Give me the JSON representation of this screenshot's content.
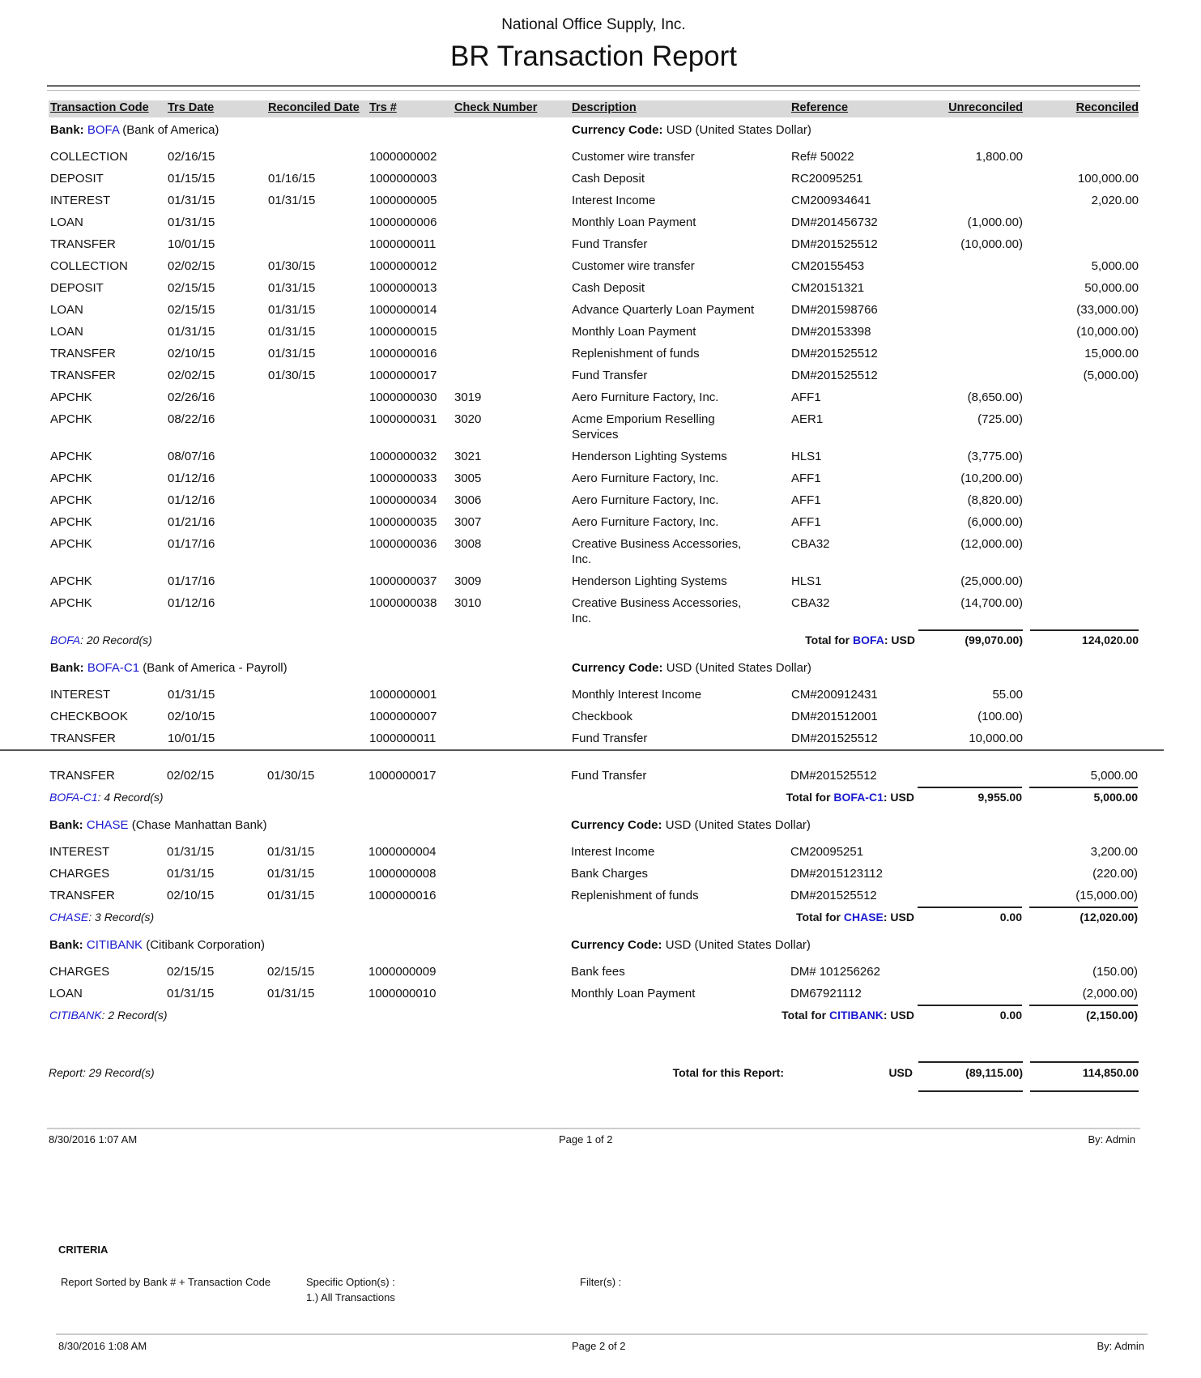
{
  "report": {
    "company": "National Office Supply, Inc.",
    "title": "BR Transaction Report"
  },
  "columns": {
    "code": "Transaction Code",
    "trs_date": "Trs Date",
    "reconciled_date": "Reconciled Date",
    "trs_no": "Trs #",
    "check_no": "Check Number",
    "description": "Description",
    "reference": "Reference",
    "unreconciled": "Unreconciled",
    "reconciled": "Reconciled"
  },
  "labels": {
    "bank": "Bank:",
    "currency_code": "Currency Code:",
    "total_for": "Total for",
    "total_currency": ": USD"
  },
  "colors": {
    "link": "#1a1ad0",
    "header_band": "#d9d9d9"
  },
  "banks": [
    {
      "code": "BOFA",
      "name": "(Bank of America)",
      "currency": "USD (United States Dollar)",
      "records": ": 20 Record(s)",
      "total_unreconciled": "(99,070.00)",
      "total_reconciled": "124,020.00",
      "rows": [
        {
          "code": "COLLECTION",
          "date": "02/16/15",
          "rdate": "",
          "trs": "1000000002",
          "check": "",
          "desc": "Customer wire transfer",
          "ref": "Ref# 50022",
          "unrec": "1,800.00",
          "rec": ""
        },
        {
          "code": "DEPOSIT",
          "date": "01/15/15",
          "rdate": "01/16/15",
          "trs": "1000000003",
          "check": "",
          "desc": "Cash Deposit",
          "ref": "RC20095251",
          "unrec": "",
          "rec": "100,000.00"
        },
        {
          "code": "INTEREST",
          "date": "01/31/15",
          "rdate": "01/31/15",
          "trs": "1000000005",
          "check": "",
          "desc": "Interest Income",
          "ref": "CM200934641",
          "unrec": "",
          "rec": "2,020.00"
        },
        {
          "code": "LOAN",
          "date": "01/31/15",
          "rdate": "",
          "trs": "1000000006",
          "check": "",
          "desc": "Monthly Loan Payment",
          "ref": "DM#201456732",
          "unrec": "(1,000.00)",
          "rec": ""
        },
        {
          "code": "TRANSFER",
          "date": "10/01/15",
          "rdate": "",
          "trs": "1000000011",
          "check": "",
          "desc": "Fund Transfer",
          "ref": "DM#201525512",
          "unrec": "(10,000.00)",
          "rec": ""
        },
        {
          "code": "COLLECTION",
          "date": "02/02/15",
          "rdate": "01/30/15",
          "trs": "1000000012",
          "check": "",
          "desc": "Customer wire transfer",
          "ref": "CM20155453",
          "unrec": "",
          "rec": "5,000.00"
        },
        {
          "code": "DEPOSIT",
          "date": "02/15/15",
          "rdate": "01/31/15",
          "trs": "1000000013",
          "check": "",
          "desc": "Cash Deposit",
          "ref": "CM20151321",
          "unrec": "",
          "rec": "50,000.00"
        },
        {
          "code": "LOAN",
          "date": "02/15/15",
          "rdate": "01/31/15",
          "trs": "1000000014",
          "check": "",
          "desc": "Advance Quarterly Loan Payment",
          "ref": "DM#201598766",
          "unrec": "",
          "rec": "(33,000.00)"
        },
        {
          "code": "LOAN",
          "date": "01/31/15",
          "rdate": "01/31/15",
          "trs": "1000000015",
          "check": "",
          "desc": "Monthly Loan Payment",
          "ref": "DM#20153398",
          "unrec": "",
          "rec": "(10,000.00)"
        },
        {
          "code": "TRANSFER",
          "date": "02/10/15",
          "rdate": "01/31/15",
          "trs": "1000000016",
          "check": "",
          "desc": "Replenishment of funds",
          "ref": "DM#201525512",
          "unrec": "",
          "rec": "15,000.00"
        },
        {
          "code": "TRANSFER",
          "date": "02/02/15",
          "rdate": "01/30/15",
          "trs": "1000000017",
          "check": "",
          "desc": "Fund Transfer",
          "ref": "DM#201525512",
          "unrec": "",
          "rec": "(5,000.00)"
        },
        {
          "code": "APCHK",
          "date": "02/26/16",
          "rdate": "",
          "trs": "1000000030",
          "check": "3019",
          "desc": "Aero Furniture Factory, Inc.",
          "ref": "AFF1",
          "unrec": "(8,650.00)",
          "rec": ""
        },
        {
          "code": "APCHK",
          "date": "08/22/16",
          "rdate": "",
          "trs": "1000000031",
          "check": "3020",
          "desc": "Acme Emporium Reselling\nServices",
          "ref": "AER1",
          "unrec": "(725.00)",
          "rec": ""
        },
        {
          "code": "APCHK",
          "date": "08/07/16",
          "rdate": "",
          "trs": "1000000032",
          "check": "3021",
          "desc": "Henderson Lighting Systems",
          "ref": "HLS1",
          "unrec": "(3,775.00)",
          "rec": ""
        },
        {
          "code": "APCHK",
          "date": "01/12/16",
          "rdate": "",
          "trs": "1000000033",
          "check": "3005",
          "desc": "Aero Furniture Factory, Inc.",
          "ref": "AFF1",
          "unrec": "(10,200.00)",
          "rec": ""
        },
        {
          "code": "APCHK",
          "date": "01/12/16",
          "rdate": "",
          "trs": "1000000034",
          "check": "3006",
          "desc": "Aero Furniture Factory, Inc.",
          "ref": "AFF1",
          "unrec": "(8,820.00)",
          "rec": ""
        },
        {
          "code": "APCHK",
          "date": "01/21/16",
          "rdate": "",
          "trs": "1000000035",
          "check": "3007",
          "desc": "Aero Furniture Factory, Inc.",
          "ref": "AFF1",
          "unrec": "(6,000.00)",
          "rec": ""
        },
        {
          "code": "APCHK",
          "date": "01/17/16",
          "rdate": "",
          "trs": "1000000036",
          "check": "3008",
          "desc": "Creative Business Accessories,\nInc.",
          "ref": "CBA32",
          "unrec": "(12,000.00)",
          "rec": ""
        },
        {
          "code": "APCHK",
          "date": "01/17/16",
          "rdate": "",
          "trs": "1000000037",
          "check": "3009",
          "desc": "Henderson Lighting Systems",
          "ref": "HLS1",
          "unrec": "(25,000.00)",
          "rec": ""
        },
        {
          "code": "APCHK",
          "date": "01/12/16",
          "rdate": "",
          "trs": "1000000038",
          "check": "3010",
          "desc": "Creative Business Accessories,\nInc.",
          "ref": "CBA32",
          "unrec": "(14,700.00)",
          "rec": ""
        }
      ]
    },
    {
      "code": "BOFA-C1",
      "name": "(Bank of America - Payroll)",
      "currency": "USD (United States Dollar)",
      "records": ": 4 Record(s)",
      "total_unreconciled": "9,955.00",
      "total_reconciled": "5,000.00",
      "rows": [
        {
          "code": "INTEREST",
          "date": "01/31/15",
          "rdate": "",
          "trs": "1000000001",
          "check": "",
          "desc": "Monthly Interest Income",
          "ref": "CM#200912431",
          "unrec": "55.00",
          "rec": ""
        },
        {
          "code": "CHECKBOOK",
          "date": "02/10/15",
          "rdate": "",
          "trs": "1000000007",
          "check": "",
          "desc": "Checkbook",
          "ref": "DM#201512001",
          "unrec": "(100.00)",
          "rec": ""
        },
        {
          "code": "TRANSFER",
          "date": "10/01/15",
          "rdate": "",
          "trs": "1000000011",
          "check": "",
          "desc": "Fund Transfer",
          "ref": "DM#201525512",
          "unrec": "10,000.00",
          "rec": ""
        },
        {
          "code": "TRANSFER",
          "date": "02/02/15",
          "rdate": "01/30/15",
          "trs": "1000000017",
          "check": "",
          "desc": "Fund Transfer",
          "ref": "DM#201525512",
          "unrec": "",
          "rec": "5,000.00"
        }
      ]
    },
    {
      "code": "CHASE",
      "name": "(Chase Manhattan Bank)",
      "currency": "USD (United States Dollar)",
      "records": ": 3 Record(s)",
      "total_unreconciled": "0.00",
      "total_reconciled": "(12,020.00)",
      "rows": [
        {
          "code": "INTEREST",
          "date": "01/31/15",
          "rdate": "01/31/15",
          "trs": "1000000004",
          "check": "",
          "desc": "Interest Income",
          "ref": "CM20095251",
          "unrec": "",
          "rec": "3,200.00"
        },
        {
          "code": "CHARGES",
          "date": "01/31/15",
          "rdate": "01/31/15",
          "trs": "1000000008",
          "check": "",
          "desc": "Bank Charges",
          "ref": "DM#2015123112",
          "unrec": "",
          "rec": "(220.00)"
        },
        {
          "code": "TRANSFER",
          "date": "02/10/15",
          "rdate": "01/31/15",
          "trs": "1000000016",
          "check": "",
          "desc": "Replenishment of funds",
          "ref": "DM#201525512",
          "unrec": "",
          "rec": "(15,000.00)"
        }
      ]
    },
    {
      "code": "CITIBANK",
      "name": "(Citibank Corporation)",
      "currency": "USD (United States Dollar)",
      "records": ": 2 Record(s)",
      "total_unreconciled": "0.00",
      "total_reconciled": "(2,150.00)",
      "rows": [
        {
          "code": "CHARGES",
          "date": "02/15/15",
          "rdate": "02/15/15",
          "trs": "1000000009",
          "check": "",
          "desc": "Bank fees",
          "ref": "DM# 101256262",
          "unrec": "",
          "rec": "(150.00)"
        },
        {
          "code": "LOAN",
          "date": "01/31/15",
          "rdate": "01/31/15",
          "trs": "1000000010",
          "check": "",
          "desc": "Monthly Loan Payment",
          "ref": "DM67921112",
          "unrec": "",
          "rec": "(2,000.00)"
        }
      ]
    }
  ],
  "report_total": {
    "records": "Report: 29 Record(s)",
    "label": "Total for this Report:",
    "currency": "USD",
    "unreconciled": "(89,115.00)",
    "reconciled": "114,850.00"
  },
  "footer1": {
    "timestamp": "8/30/2016 1:07 AM",
    "page": "Page 1 of 2",
    "by": "By: Admin"
  },
  "criteria": {
    "heading": "CRITERIA",
    "sorted": "Report Sorted by Bank # + Transaction Code",
    "options_label": "Specific Option(s) :",
    "option1": "1.) All Transactions",
    "filters_label": "Filter(s) :"
  },
  "footer2": {
    "timestamp": "8/30/2016 1:08 AM",
    "page": "Page 2 of 2",
    "by": "By: Admin"
  }
}
